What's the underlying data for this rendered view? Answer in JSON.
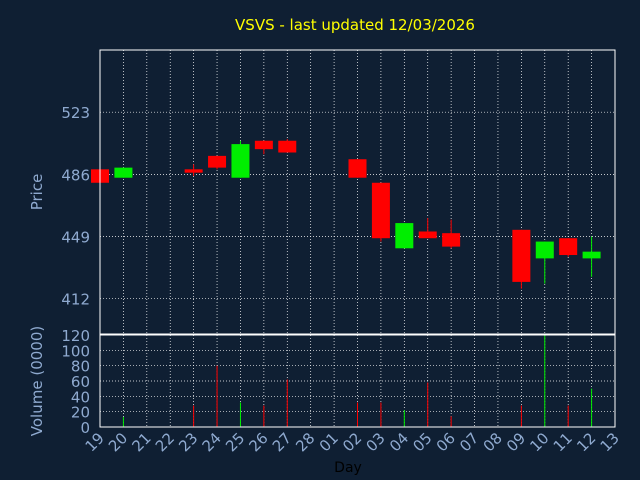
{
  "chart_data": [
    {
      "type": "candlestick",
      "title": "VSVS - last updated 12/03/2026",
      "ylabel": "Price",
      "y_ticks": [
        412,
        449,
        486,
        523
      ],
      "ylim": [
        391,
        560
      ],
      "x_ticks": [
        "19",
        "20",
        "21",
        "22",
        "23",
        "24",
        "25",
        "26",
        "27",
        "28",
        "01",
        "02",
        "03",
        "04",
        "05",
        "06",
        "07",
        "08",
        "09",
        "10",
        "11",
        "12",
        "13"
      ],
      "grid": true,
      "colors": {
        "up": "#00ee00",
        "down": "#ff0000",
        "title": "#ffff00",
        "axis_text": "#8faad0",
        "grid": "#ffffff",
        "plot_bg": "#0f1f33"
      },
      "candles": [
        {
          "day": "19",
          "open": 489,
          "high": 489,
          "low": 481,
          "close": 481
        },
        {
          "day": "20",
          "open": 484,
          "high": 490,
          "low": 484,
          "close": 490
        },
        {
          "day": "23",
          "open": 489,
          "high": 492,
          "low": 485,
          "close": 487
        },
        {
          "day": "24",
          "open": 497,
          "high": 497,
          "low": 489,
          "close": 490
        },
        {
          "day": "25",
          "open": 484,
          "high": 506,
          "low": 484,
          "close": 504
        },
        {
          "day": "26",
          "open": 506,
          "high": 506,
          "low": 498,
          "close": 501
        },
        {
          "day": "27",
          "open": 506,
          "high": 507,
          "low": 499,
          "close": 499
        },
        {
          "day": "02",
          "open": 495,
          "high": 495,
          "low": 484,
          "close": 484
        },
        {
          "day": "03",
          "open": 481,
          "high": 481,
          "low": 446,
          "close": 448
        },
        {
          "day": "04",
          "open": 442,
          "high": 457,
          "low": 442,
          "close": 457
        },
        {
          "day": "05",
          "open": 452,
          "high": 460,
          "low": 448,
          "close": 448
        },
        {
          "day": "06",
          "open": 451,
          "high": 459,
          "low": 442,
          "close": 443
        },
        {
          "day": "09",
          "open": 453,
          "high": 453,
          "low": 418,
          "close": 422
        },
        {
          "day": "10",
          "open": 436,
          "high": 446,
          "low": 421,
          "close": 446
        },
        {
          "day": "11",
          "open": 448,
          "high": 448,
          "low": 437,
          "close": 438
        },
        {
          "day": "12",
          "open": 436,
          "high": 449,
          "low": 425,
          "close": 440
        }
      ]
    },
    {
      "type": "bar",
      "ylabel": "Volume (0000)",
      "xlabel": "Day",
      "y_ticks": [
        0,
        20,
        40,
        60,
        80,
        100,
        120
      ],
      "ylim": [
        0,
        120
      ],
      "x_ticks": [
        "19",
        "20",
        "21",
        "22",
        "23",
        "24",
        "25",
        "26",
        "27",
        "28",
        "01",
        "02",
        "03",
        "04",
        "05",
        "06",
        "07",
        "08",
        "09",
        "10",
        "11",
        "12",
        "13"
      ],
      "grid": true,
      "bars": [
        {
          "day": "19",
          "value": 2,
          "dir": "down"
        },
        {
          "day": "20",
          "value": 13,
          "dir": "up"
        },
        {
          "day": "23",
          "value": 28,
          "dir": "down"
        },
        {
          "day": "24",
          "value": 80,
          "dir": "down"
        },
        {
          "day": "25",
          "value": 32,
          "dir": "up"
        },
        {
          "day": "26",
          "value": 28,
          "dir": "down"
        },
        {
          "day": "27",
          "value": 62,
          "dir": "down"
        },
        {
          "day": "02",
          "value": 32,
          "dir": "down"
        },
        {
          "day": "03",
          "value": 32,
          "dir": "down"
        },
        {
          "day": "04",
          "value": 22,
          "dir": "up"
        },
        {
          "day": "05",
          "value": 58,
          "dir": "down"
        },
        {
          "day": "06",
          "value": 14,
          "dir": "down"
        },
        {
          "day": "09",
          "value": 28,
          "dir": "down"
        },
        {
          "day": "10",
          "value": 120,
          "dir": "up"
        },
        {
          "day": "11",
          "value": 28,
          "dir": "down"
        },
        {
          "day": "12",
          "value": 50,
          "dir": "up"
        }
      ]
    }
  ]
}
